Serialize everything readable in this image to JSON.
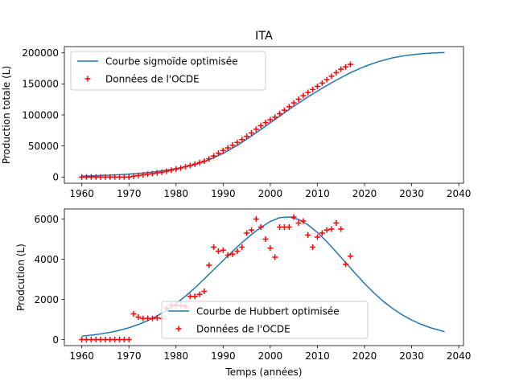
{
  "title": "ITA",
  "chart_data": [
    {
      "type": "scatter",
      "title": "ITA",
      "xlabel": "",
      "ylabel": "Production totale (L)",
      "xlim": [
        1956.3,
        2041.0
      ],
      "ylim": [
        -10000,
        210000
      ],
      "xticks": [
        1960,
        1970,
        1980,
        1990,
        2000,
        2010,
        2020,
        2030,
        2040
      ],
      "yticks": [
        0,
        50000,
        100000,
        150000,
        200000
      ],
      "legend_position": "top-left",
      "series": [
        {
          "name": "Courbe sigmoïde optimisée",
          "kind": "line",
          "color": "#1f77b4",
          "x": [
            1960,
            1963,
            1966,
            1969,
            1972,
            1975,
            1978,
            1981,
            1984,
            1987,
            1990,
            1993,
            1996,
            1999,
            2002,
            2005,
            2008,
            2011,
            2014,
            2017,
            2020,
            2023,
            2026,
            2029,
            2032,
            2035,
            2037
          ],
          "y": [
            1500,
            2200,
            3000,
            4200,
            5800,
            8000,
            11000,
            15000,
            20000,
            28000,
            38000,
            51000,
            66000,
            82000,
            98000,
            114000,
            129000,
            143000,
            156000,
            168000,
            178000,
            186000,
            192000,
            196000,
            198500,
            200000,
            200500
          ]
        },
        {
          "name": "Données de l'OCDE",
          "kind": "marker",
          "marker": "+",
          "color": "#ff0000",
          "x": [
            1960,
            1961,
            1962,
            1963,
            1964,
            1965,
            1966,
            1967,
            1968,
            1969,
            1970,
            1971,
            1972,
            1973,
            1974,
            1975,
            1976,
            1977,
            1978,
            1979,
            1980,
            1981,
            1982,
            1983,
            1984,
            1985,
            1986,
            1987,
            1988,
            1989,
            1990,
            1991,
            1992,
            1993,
            1994,
            1995,
            1996,
            1997,
            1998,
            1999,
            2000,
            2001,
            2002,
            2003,
            2004,
            2005,
            2006,
            2007,
            2008,
            2009,
            2010,
            2011,
            2012,
            2013,
            2014,
            2015,
            2016,
            2017
          ],
          "y": [
            0,
            0,
            0,
            0,
            0,
            0,
            0,
            0,
            0,
            0,
            0,
            1300,
            2400,
            3500,
            4600,
            5600,
            6700,
            7700,
            9300,
            11000,
            12700,
            14400,
            16500,
            18600,
            20800,
            23200,
            25600,
            29300,
            33900,
            38300,
            42800,
            47000,
            51300,
            55700,
            60300,
            65600,
            71100,
            77100,
            82700,
            87700,
            92300,
            96400,
            102000,
            107600,
            113300,
            119400,
            125200,
            131100,
            136300,
            140900,
            146000,
            151300,
            156800,
            162300,
            168100,
            173600,
            177300,
            181400
          ]
        }
      ]
    },
    {
      "type": "scatter",
      "title": "",
      "xlabel": "Temps (années)",
      "ylabel": "Prodcution (L)",
      "xlim": [
        1956.3,
        2041.0
      ],
      "ylim": [
        -300,
        6500
      ],
      "xticks": [
        1960,
        1970,
        1980,
        1990,
        2000,
        2010,
        2020,
        2030,
        2040
      ],
      "yticks": [
        0,
        2000,
        4000,
        6000
      ],
      "legend_position": "lower-center",
      "series": [
        {
          "name": "Courbe de Hubbert optimisée",
          "kind": "line",
          "color": "#1f77b4",
          "x": [
            1960,
            1962,
            1964,
            1966,
            1968,
            1970,
            1972,
            1974,
            1976,
            1978,
            1980,
            1982,
            1984,
            1986,
            1988,
            1990,
            1992,
            1994,
            1996,
            1998,
            2000,
            2002,
            2004,
            2006,
            2008,
            2010,
            2012,
            2014,
            2016,
            2018,
            2020,
            2022,
            2024,
            2026,
            2028,
            2030,
            2032,
            2034,
            2037
          ],
          "y": [
            170,
            220,
            280,
            360,
            460,
            590,
            750,
            940,
            1180,
            1460,
            1790,
            2160,
            2570,
            3020,
            3480,
            3940,
            4400,
            4830,
            5230,
            5580,
            5880,
            6070,
            6100,
            5980,
            5710,
            5330,
            4870,
            4360,
            3830,
            3300,
            2790,
            2320,
            1900,
            1540,
            1230,
            970,
            760,
            590,
            390
          ]
        },
        {
          "name": "Données de l'OCDE",
          "kind": "marker",
          "marker": "+",
          "color": "#ff0000",
          "x": [
            1960,
            1961,
            1962,
            1963,
            1964,
            1965,
            1966,
            1967,
            1968,
            1969,
            1970,
            1971,
            1972,
            1973,
            1974,
            1975,
            1976,
            1977,
            1978,
            1979,
            1980,
            1981,
            1982,
            1983,
            1984,
            1985,
            1986,
            1987,
            1988,
            1989,
            1990,
            1991,
            1992,
            1993,
            1994,
            1995,
            1996,
            1997,
            1998,
            1999,
            2000,
            2001,
            2002,
            2003,
            2004,
            2005,
            2006,
            2007,
            2008,
            2009,
            2010,
            2011,
            2012,
            2013,
            2014,
            2015,
            2016,
            2017
          ],
          "y": [
            0,
            0,
            0,
            0,
            0,
            0,
            0,
            0,
            0,
            0,
            0,
            1280,
            1120,
            1050,
            1060,
            1050,
            1080,
            1050,
            1550,
            1700,
            1700,
            1700,
            1650,
            2150,
            2150,
            2250,
            2400,
            3700,
            4600,
            4400,
            4450,
            4200,
            4250,
            4400,
            4600,
            5300,
            5450,
            6000,
            5600,
            5000,
            4550,
            4100,
            5600,
            5600,
            5600,
            6100,
            5800,
            5900,
            5200,
            4600,
            5100,
            5300,
            5450,
            5500,
            5800,
            5500,
            3750,
            4150
          ]
        }
      ]
    }
  ]
}
